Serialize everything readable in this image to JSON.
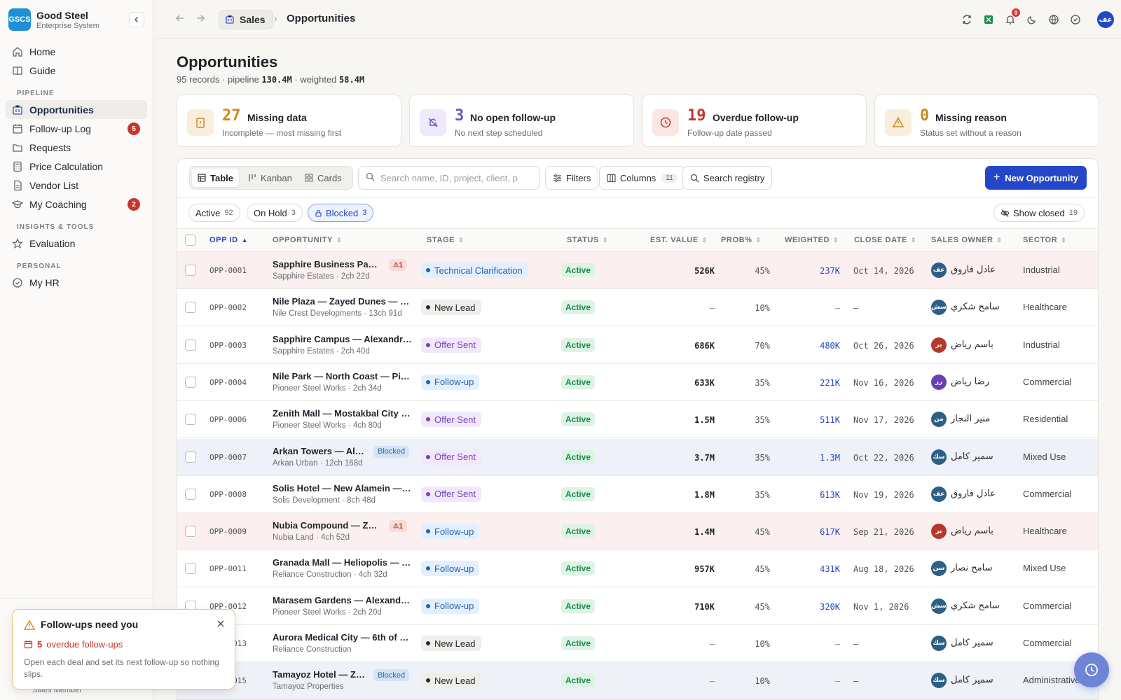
{
  "brand": {
    "logo_text": "GSCS",
    "name": "Good Steel",
    "subtitle": "Enterprise System"
  },
  "sidebar": {
    "top_items": [
      {
        "label": "Home",
        "icon": "home-icon"
      },
      {
        "label": "Guide",
        "icon": "book-icon"
      }
    ],
    "sections": [
      {
        "title": "PIPELINE",
        "items": [
          {
            "label": "Opportunities",
            "icon": "building-icon",
            "active": true
          },
          {
            "label": "Follow-up Log",
            "icon": "calendar-icon",
            "badge": "5"
          },
          {
            "label": "Requests",
            "icon": "folder-icon"
          },
          {
            "label": "Price Calculation",
            "icon": "calculator-icon"
          },
          {
            "label": "Vendor List",
            "icon": "document-icon"
          },
          {
            "label": "My Coaching",
            "icon": "graduation-cap-icon",
            "badge": "2"
          }
        ]
      },
      {
        "title": "INSIGHTS & TOOLS",
        "items": [
          {
            "label": "Evaluation",
            "icon": "star-icon"
          }
        ]
      },
      {
        "title": "PERSONAL",
        "items": [
          {
            "label": "My HR",
            "icon": "check-circle-icon"
          }
        ]
      }
    ],
    "footer_role": "Sales Member"
  },
  "topbar": {
    "breadcrumb_parent": "Sales",
    "breadcrumb_current": "Opportunities",
    "notification_count": "9",
    "avatar_initials": "عف"
  },
  "page": {
    "title": "Opportunities",
    "summary": {
      "records": "95",
      "records_label": "records · pipeline",
      "pipeline": "130.4M",
      "weighted_label": "· weighted",
      "weighted": "58.4M"
    }
  },
  "kpis": [
    {
      "value": "27",
      "label": "Missing data",
      "sub": "Incomplete — most missing first",
      "color": "#c98a1b",
      "bg": "#f8eedb",
      "icon": "clipboard-alert-icon"
    },
    {
      "value": "3",
      "label": "No open follow-up",
      "sub": "No next step scheduled",
      "color": "#6f4fc7",
      "bg": "#eee9fb",
      "icon": "bell-off-icon"
    },
    {
      "value": "19",
      "label": "Overdue follow-up",
      "sub": "Follow-up date passed",
      "color": "#c8362b",
      "bg": "#fbe6e4",
      "icon": "clock-icon"
    },
    {
      "value": "0",
      "label": "Missing reason",
      "sub": "Status set without a reason",
      "color": "#c98a1b",
      "bg": "#f8eedb",
      "icon": "warning-triangle-icon"
    }
  ],
  "toolbar": {
    "views": [
      "Table",
      "Kanban",
      "Cards"
    ],
    "search_placeholder": "Search name, ID, project, client, p",
    "filters_label": "Filters",
    "columns_label": "Columns",
    "columns_count": "11",
    "search_registry_label": "Search registry",
    "new_label": "New Opportunity"
  },
  "filter_chips": [
    {
      "label": "Active",
      "count": "92"
    },
    {
      "label": "On Hold",
      "count": "3"
    },
    {
      "label": "Blocked",
      "count": "3"
    }
  ],
  "show_closed": {
    "label": "Show closed",
    "count": "19"
  },
  "columns": [
    "OPP ID",
    "OPPORTUNITY",
    "STAGE",
    "STATUS",
    "EST. VALUE",
    "PROB%",
    "WEIGHTED",
    "CLOSE DATE",
    "SALES OWNER",
    "SECTOR"
  ],
  "stage_styles": {
    "Technical Clarification": {
      "bg": "#e3effc",
      "fg": "#1e64b5",
      "dot": "#1e64b5"
    },
    "New Lead": {
      "bg": "#efeeea",
      "fg": "#26292e",
      "dot": "#26292e"
    },
    "Offer Sent": {
      "bg": "#f1e9fb",
      "fg": "#7a3fc4",
      "dot": "#7a3fc4"
    },
    "Follow-up": {
      "bg": "#e3effc",
      "fg": "#1e64b5",
      "dot": "#1e64b5"
    }
  },
  "rows": [
    {
      "id": "OPP-0001",
      "name": "Sapphire Business Park ...",
      "client": "Sapphire Estates · 2ch 22d",
      "tag": "1",
      "tag_type": "warn",
      "row_type": "missing",
      "stage": "Technical Clarification",
      "status": "Active",
      "est": "526K",
      "prob": "45%",
      "weighted": "237K",
      "close": "Oct 14, 2026",
      "owner": "عادل فاروق",
      "initials": "عف",
      "av": "#2b5f86",
      "sector": "Industrial"
    },
    {
      "id": "OPP-0002",
      "name": "Nile Plaza — Zayed Dunes — Nile...",
      "client": "Nile Crest Developments · 13ch 91d",
      "row_type": "",
      "stage": "New Lead",
      "status": "Active",
      "est": "—",
      "prob": "10%",
      "weighted": "—",
      "close": "—",
      "owner": "سامح شكري",
      "initials": "سش",
      "av": "#2b5f86",
      "sector": "Healthcare"
    },
    {
      "id": "OPP-0003",
      "name": "Sapphire Campus — Alexandria ...",
      "client": "Sapphire Estates · 2ch 40d",
      "row_type": "",
      "stage": "Offer Sent",
      "status": "Active",
      "est": "686K",
      "prob": "70%",
      "weighted": "480K",
      "close": "Oct 26, 2026",
      "owner": "باسم رياض",
      "initials": "بر",
      "av": "#b5382c",
      "sector": "Industrial"
    },
    {
      "id": "OPP-0004",
      "name": "Nile Park — North Coast — Pion...",
      "client": "Pioneer Steel Works · 2ch 34d",
      "row_type": "",
      "stage": "Follow-up",
      "status": "Active",
      "est": "633K",
      "prob": "35%",
      "weighted": "221K",
      "close": "Nov 16, 2026",
      "owner": "رضا رياض",
      "initials": "رر",
      "av": "#6a3fb5",
      "sector": "Commercial"
    },
    {
      "id": "OPP-0006",
      "name": "Zenith Mall — Mostakbal City — ...",
      "client": "Pioneer Steel Works · 4ch 80d",
      "row_type": "",
      "stage": "Offer Sent",
      "status": "Active",
      "est": "1.5M",
      "prob": "35%",
      "weighted": "511K",
      "close": "Nov 17, 2026",
      "owner": "منير النجار",
      "initials": "من",
      "av": "#2b5f86",
      "sector": "Residential"
    },
    {
      "id": "OPP-0007",
      "name": "Arkan Towers — Alex...",
      "client": "Arkan Urban · 12ch 168d",
      "tag": "Blocked",
      "tag_type": "blocked",
      "row_type": "blocked",
      "stage": "Offer Sent",
      "status": "Active",
      "est": "3.7M",
      "prob": "35%",
      "weighted": "1.3M",
      "close": "Oct 22, 2026",
      "owner": "سمير كامل",
      "initials": "سك",
      "av": "#2b5f86",
      "sector": "Mixed Use"
    },
    {
      "id": "OPP-0008",
      "name": "Solis Hotel — New Alamein — Ph...",
      "client": "Solis Development · 8ch 48d",
      "row_type": "",
      "stage": "Offer Sent",
      "status": "Active",
      "est": "1.8M",
      "prob": "35%",
      "weighted": "613K",
      "close": "Nov 19, 2026",
      "owner": "عادل فاروق",
      "initials": "عف",
      "av": "#2b5f86",
      "sector": "Commercial"
    },
    {
      "id": "OPP-0009",
      "name": "Nubia Compound — Zay...",
      "client": "Nubia Land · 4ch 52d",
      "tag": "1",
      "tag_type": "warn",
      "row_type": "missing",
      "stage": "Follow-up",
      "status": "Active",
      "est": "1.4M",
      "prob": "45%",
      "weighted": "617K",
      "close": "Sep 21, 2026",
      "owner": "باسم رياض",
      "initials": "بر",
      "av": "#b5382c",
      "sector": "Healthcare"
    },
    {
      "id": "OPP-0011",
      "name": "Granada Mall — Heliopolis — Rel...",
      "client": "Reliance Construction · 4ch 32d",
      "row_type": "",
      "stage": "Follow-up",
      "status": "Active",
      "est": "957K",
      "prob": "45%",
      "weighted": "431K",
      "close": "Aug 18, 2026",
      "owner": "سامح نصار",
      "initials": "سن",
      "av": "#2b5f86",
      "sector": "Mixed Use"
    },
    {
      "id": "OPP-0012",
      "name": "Marasem Gardens — Alexandria...",
      "client": "Pioneer Steel Works · 2ch 20d",
      "row_type": "",
      "stage": "Follow-up",
      "status": "Active",
      "est": "710K",
      "prob": "45%",
      "weighted": "320K",
      "close": "Nov 1, 2026",
      "owner": "سامح شكري",
      "initials": "سش",
      "av": "#2b5f86",
      "sector": "Commercial"
    },
    {
      "id": "OPP-0013",
      "name": "Aurora Medical City — 6th of Oc...",
      "client": "Reliance Construction",
      "row_type": "",
      "stage": "New Lead",
      "status": "Active",
      "est": "—",
      "prob": "10%",
      "weighted": "—",
      "close": "—",
      "owner": "سمير كامل",
      "initials": "سك",
      "av": "#2b5f86",
      "sector": "Commercial"
    },
    {
      "id": "OPP-0015",
      "name": "Tamayoz Hotel — Zay...",
      "client": "Tamayoz Properties",
      "tag": "Blocked",
      "tag_type": "blocked",
      "row_type": "blocked",
      "stage": "New Lead",
      "status": "Active",
      "est": "—",
      "prob": "10%",
      "weighted": "—",
      "close": "—",
      "owner": "سمير كامل",
      "initials": "سك",
      "av": "#2b5f86",
      "sector": "Administrative"
    }
  ],
  "toast": {
    "title": "Follow-ups need you",
    "count": "5",
    "count_label": "overdue follow-ups",
    "body": "Open each deal and set its next follow-up so nothing slips."
  }
}
